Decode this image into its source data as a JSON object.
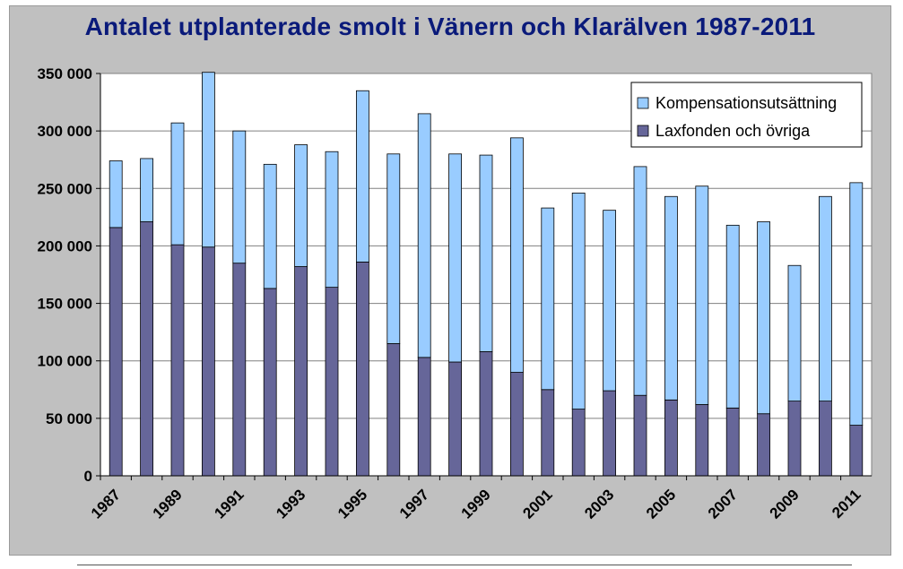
{
  "chart_data": {
    "type": "bar",
    "stacked": true,
    "title": "Antalet utplanterade smolt i Vänern och Klarälven 1987-2011",
    "categories": [
      "1987",
      "1988",
      "1989",
      "1990",
      "1991",
      "1992",
      "1993",
      "1994",
      "1995",
      "1996",
      "1997",
      "1998",
      "1999",
      "2000",
      "2001",
      "2002",
      "2003",
      "2004",
      "2005",
      "2006",
      "2007",
      "2008",
      "2009",
      "2010",
      "2011"
    ],
    "x_tick_labels": [
      "1987",
      "1989",
      "1991",
      "1993",
      "1995",
      "1997",
      "1999",
      "2001",
      "2003",
      "2005",
      "2007",
      "2009",
      "2011"
    ],
    "series": [
      {
        "name": "Laxfonden och övriga",
        "color": "#666699",
        "values": [
          216000,
          221000,
          201000,
          199000,
          185000,
          163000,
          182000,
          164000,
          186000,
          115000,
          103000,
          99000,
          108000,
          90000,
          75000,
          58000,
          74000,
          70000,
          66000,
          62000,
          59000,
          54000,
          65000,
          65000,
          44000
        ]
      },
      {
        "name": "Kompensationsutsättning",
        "color": "#99ccff",
        "values": [
          58000,
          55000,
          106000,
          152000,
          115000,
          108000,
          106000,
          118000,
          149000,
          165000,
          212000,
          181000,
          171000,
          204000,
          158000,
          188000,
          157000,
          199000,
          177000,
          190000,
          159000,
          167000,
          118000,
          178000,
          211000
        ]
      }
    ],
    "y_ticks": [
      "0",
      "50 000",
      "100 000",
      "150 000",
      "200 000",
      "250 000",
      "300 000",
      "350 000"
    ],
    "ylim": [
      0,
      350000
    ],
    "grid": true,
    "legend_position": "top-right"
  }
}
